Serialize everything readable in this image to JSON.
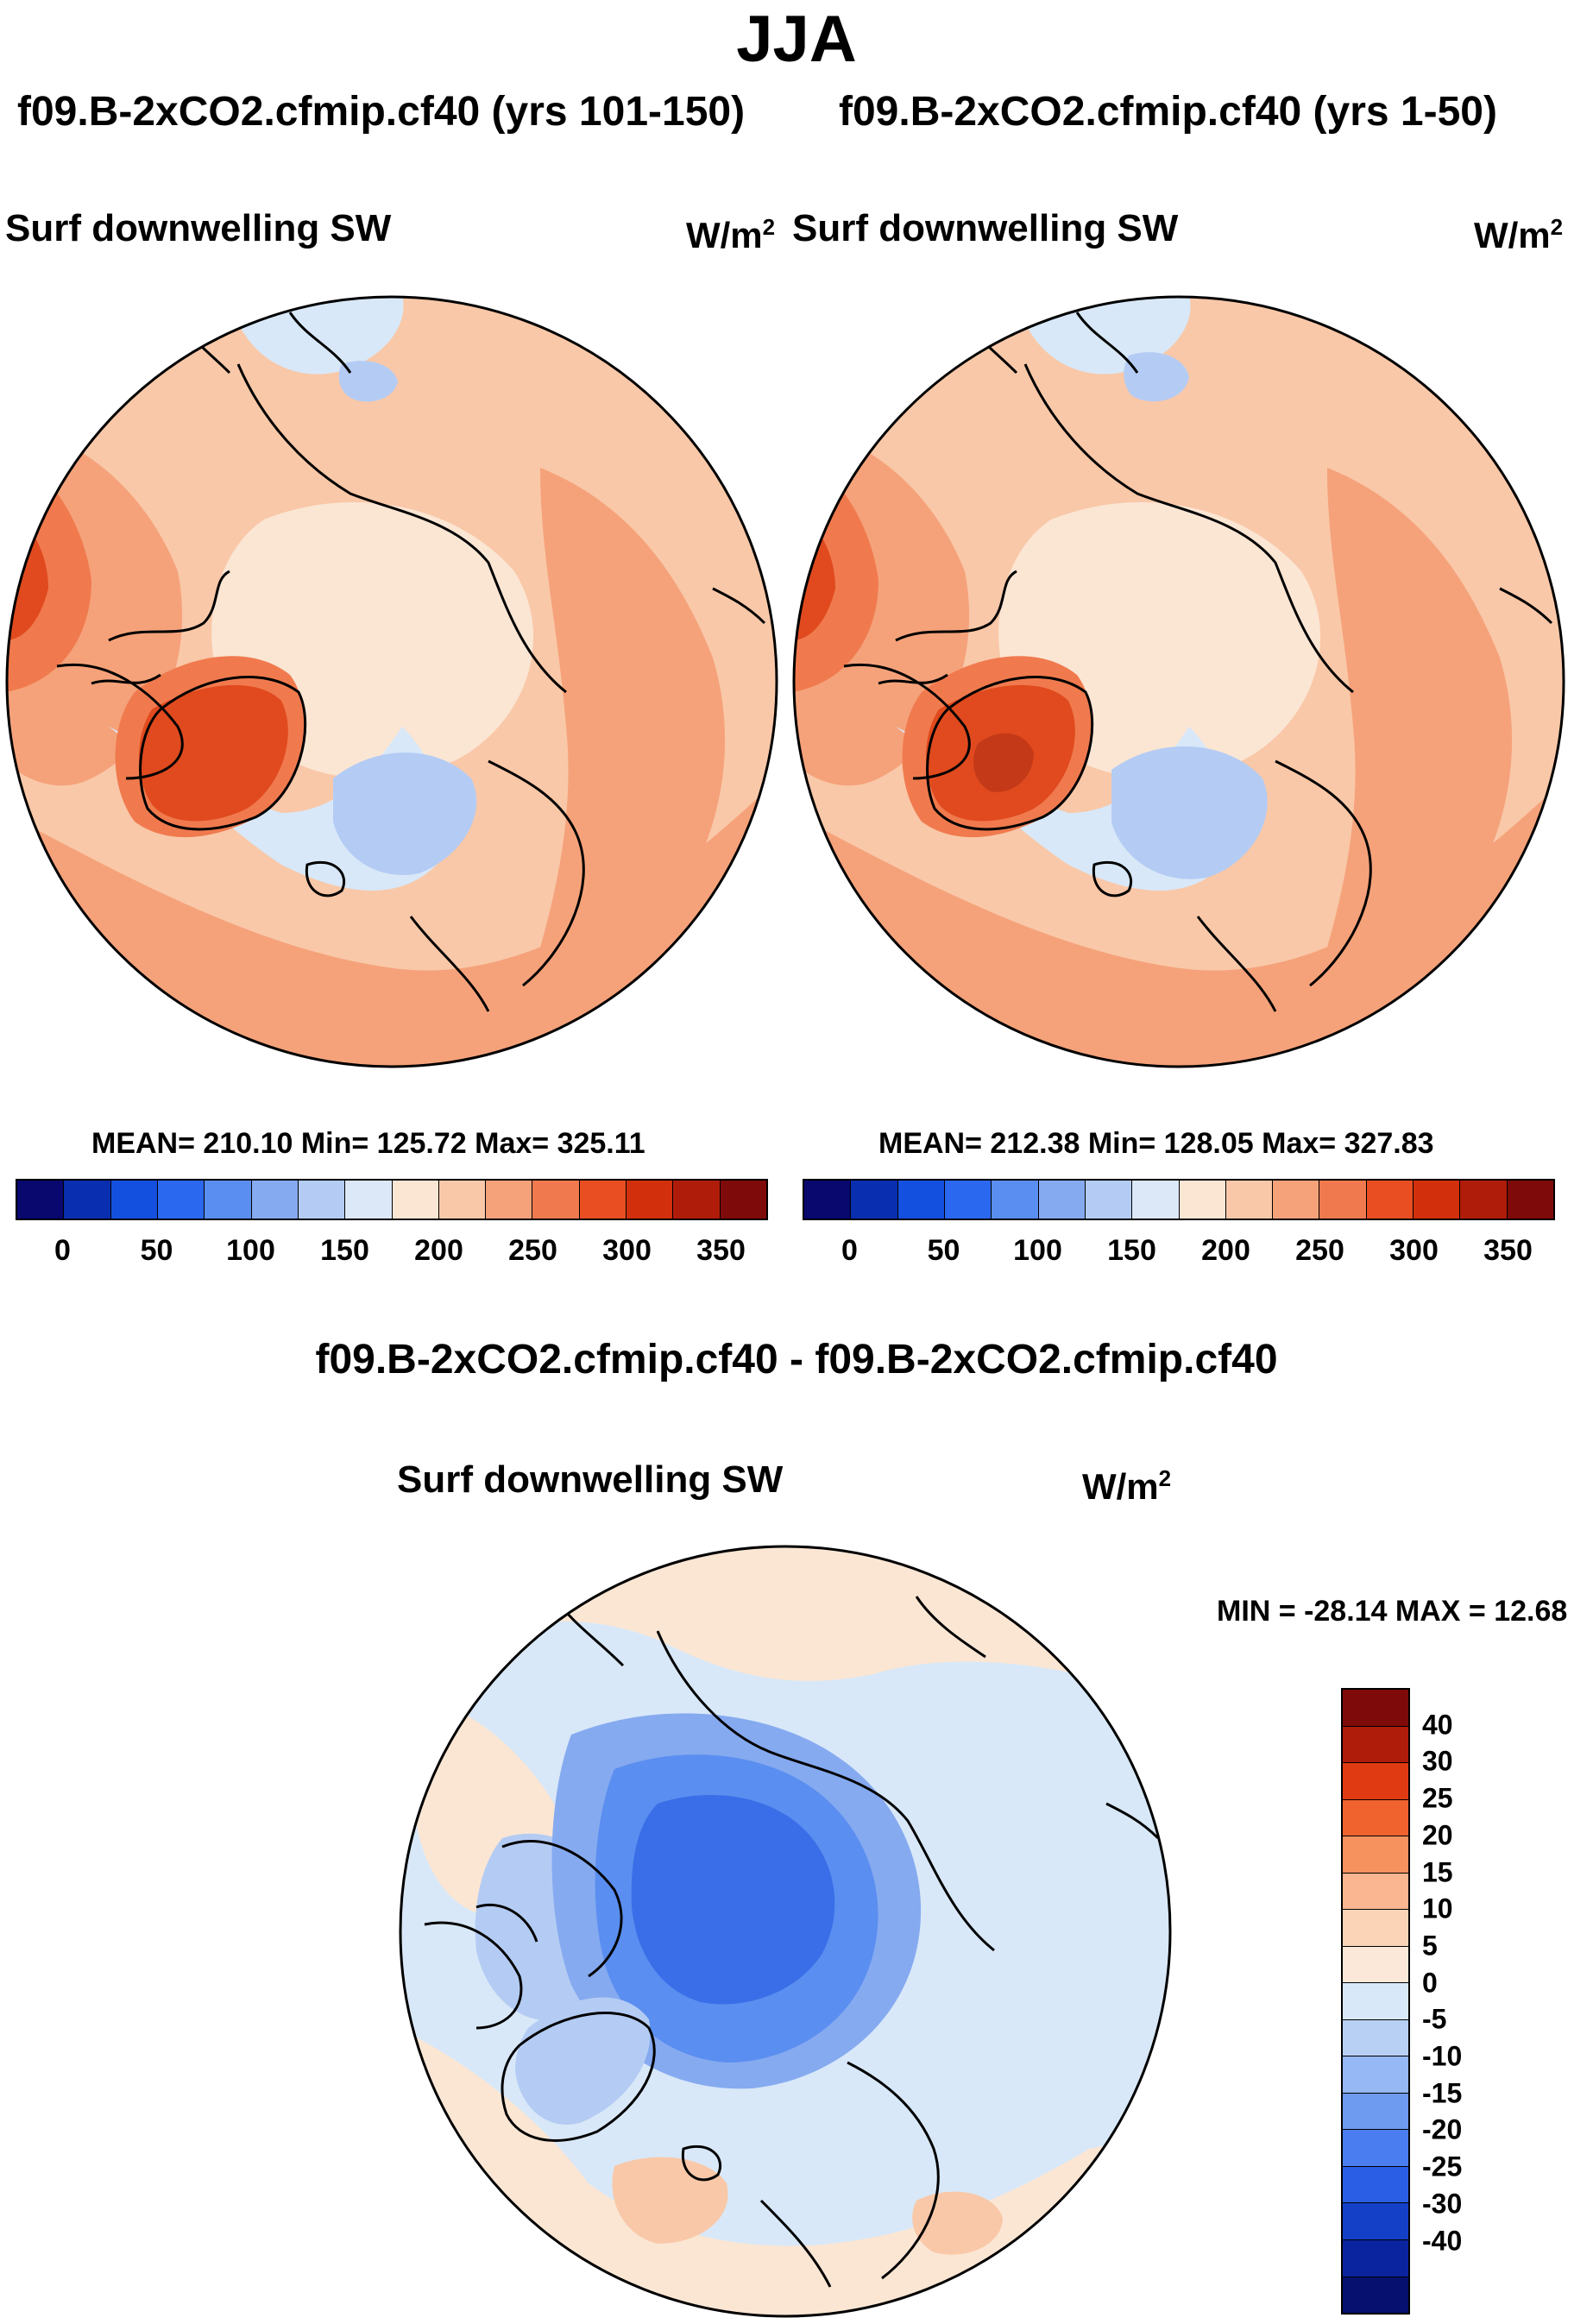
{
  "season": "JJA",
  "panels": [
    {
      "title": "f09.B-2xCO2.cfmip.cf40 (yrs 101-150)",
      "variable": "Surf downwelling SW",
      "units": "W/m",
      "units_exp": "2",
      "stats": "MEAN= 210.10  Min= 125.72  Max= 325.11"
    },
    {
      "title": "f09.B-2xCO2.cfmip.cf40 (yrs 1-50)",
      "variable": "Surf downwelling SW",
      "units": "W/m",
      "units_exp": "2",
      "stats": "MEAN= 212.38  Min= 128.05  Max= 327.83"
    }
  ],
  "abs_colorbar": {
    "ticks": [
      "0",
      "50",
      "100",
      "150",
      "200",
      "250",
      "300",
      "350"
    ],
    "colors": [
      "#08086e",
      "#0a2eb0",
      "#1450e0",
      "#2a68f0",
      "#5a8ef0",
      "#86aaf0",
      "#b4ccf4",
      "#dce8f8",
      "#fbe6d4",
      "#f9c8a8",
      "#f5a27a",
      "#f07a4e",
      "#e84e22",
      "#d2300c",
      "#b01c0a",
      "#7e0a0a"
    ]
  },
  "diff": {
    "title": "f09.B-2xCO2.cfmip.cf40 - f09.B-2xCO2.cfmip.cf40",
    "variable": "Surf downwelling SW",
    "units": "W/m",
    "units_exp": "2",
    "stats": "MIN = -28.14 MAX =  12.68"
  },
  "diff_colorbar": {
    "ticks": [
      "40",
      "30",
      "25",
      "20",
      "15",
      "10",
      "5",
      "0",
      "-5",
      "-10",
      "-15",
      "-20",
      "-25",
      "-30",
      "-40"
    ],
    "colors": [
      "#7e0a0a",
      "#b01c0a",
      "#e03a12",
      "#f0622e",
      "#f5925e",
      "#f9b690",
      "#fbd4b8",
      "#fbe8d8",
      "#d8e8f8",
      "#b8d0f4",
      "#96b8f4",
      "#6e9af0",
      "#4a7ef0",
      "#2a5ee4",
      "#1440c8",
      "#0a24a0",
      "#06106e"
    ]
  },
  "map_colors": {
    "pale_blue": "#d8e8f8",
    "light_blue": "#b4ccf4",
    "mid_blue": "#86aaf0",
    "blue": "#5a8ef0",
    "deep_blue": "#3a6ee8",
    "cream": "#fbe6d4",
    "peach": "#f9c8a8",
    "salmon": "#f5a27a",
    "orange": "#f07a4e",
    "red_orange": "#e04a1e",
    "dark_red": "#c43a18"
  }
}
